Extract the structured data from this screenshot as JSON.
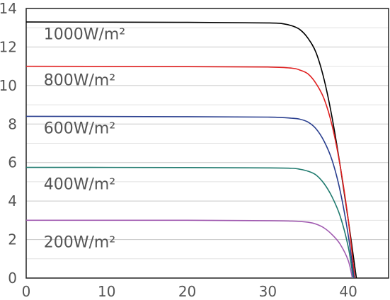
{
  "chart_data": {
    "type": "line",
    "title": "",
    "xlabel": "",
    "ylabel": "",
    "xlim": [
      0,
      45
    ],
    "ylim": [
      0,
      14
    ],
    "x_ticks": [
      0,
      10,
      20,
      30,
      40
    ],
    "y_ticks": [
      0,
      2,
      4,
      6,
      8,
      10,
      12,
      14
    ],
    "grid": "horizontal",
    "series": [
      {
        "name": "1000W/m²",
        "color": "#000000",
        "label_at": [
          2,
          12.7
        ],
        "x": [
          0,
          20,
          30,
          32,
          33,
          34,
          35,
          36,
          37,
          38,
          39,
          40,
          41
        ],
        "y": [
          13.3,
          13.28,
          13.25,
          13.2,
          13.1,
          12.9,
          12.45,
          11.7,
          10.3,
          8.3,
          5.8,
          3.0,
          0
        ]
      },
      {
        "name": "800W/m²",
        "color": "#e02020",
        "label_at": [
          2,
          10.3
        ],
        "x": [
          0,
          20,
          30,
          33,
          34,
          35,
          36,
          37,
          38,
          39,
          40,
          40.8
        ],
        "y": [
          11.0,
          10.98,
          10.96,
          10.9,
          10.8,
          10.6,
          10.1,
          9.3,
          7.9,
          5.8,
          3.0,
          0
        ]
      },
      {
        "name": "600W/m²",
        "color": "#2a3f8f",
        "label_at": [
          2,
          7.8
        ],
        "x": [
          0,
          20,
          30,
          33,
          34,
          35,
          36,
          37,
          38,
          39,
          40,
          40.7
        ],
        "y": [
          8.4,
          8.38,
          8.36,
          8.3,
          8.25,
          8.1,
          7.75,
          7.1,
          6.1,
          4.5,
          2.2,
          0
        ]
      },
      {
        "name": "400W/m²",
        "color": "#1f7a6e",
        "label_at": [
          2,
          4.9
        ],
        "x": [
          0,
          20,
          30,
          33,
          34,
          35,
          36,
          37,
          38,
          39,
          40,
          40.6
        ],
        "y": [
          5.75,
          5.74,
          5.72,
          5.7,
          5.65,
          5.55,
          5.35,
          4.9,
          4.2,
          3.2,
          1.6,
          0
        ]
      },
      {
        "name": "200W/m²",
        "color": "#a05ab0",
        "label_at": [
          2,
          1.9
        ],
        "x": [
          0,
          20,
          30,
          33,
          35,
          36,
          37,
          38,
          39,
          40,
          40.5
        ],
        "y": [
          3.0,
          3.0,
          2.98,
          2.96,
          2.9,
          2.8,
          2.6,
          2.25,
          1.75,
          0.9,
          0
        ]
      }
    ]
  }
}
